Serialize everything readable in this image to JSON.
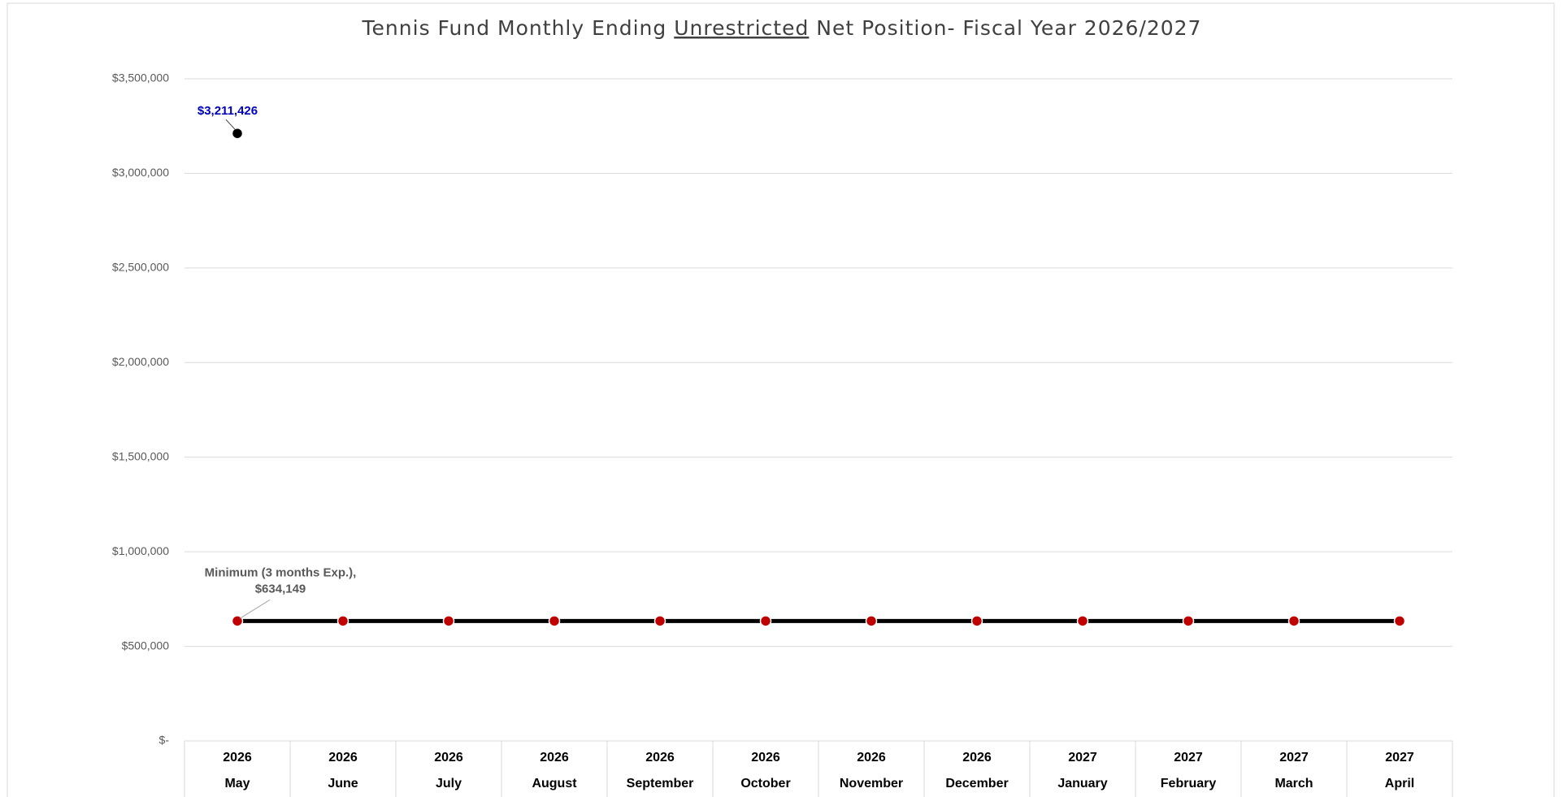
{
  "chart_data": {
    "type": "line",
    "title_parts": [
      "Tennis Fund Monthly Ending ",
      "Unrestricted",
      " Net Position- Fiscal Year 2026/2027"
    ],
    "categories": [
      "May",
      "June",
      "July",
      "August",
      "September",
      "October",
      "November",
      "December",
      "January",
      "February",
      "March",
      "April"
    ],
    "category_groups": [
      "2026",
      "2026",
      "2026",
      "2026",
      "2026",
      "2026",
      "2026",
      "2026",
      "2027",
      "2027",
      "2027",
      "2027"
    ],
    "series": [
      {
        "color": "#000000",
        "marker_color": "#000000",
        "line": false,
        "values": [
          3211426,
          null,
          null,
          null,
          null,
          null,
          null,
          null,
          null,
          null,
          null,
          null
        ],
        "value_labels": [
          "$3,211,426",
          null,
          null,
          null,
          null,
          null,
          null,
          null,
          null,
          null,
          null,
          null
        ],
        "label_color": "#0000c0"
      },
      {
        "color": "#000000",
        "marker_color": "#c00000",
        "line": true,
        "values": [
          634149,
          634149,
          634149,
          634149,
          634149,
          634149,
          634149,
          634149,
          634149,
          634149,
          634149,
          634149
        ],
        "value_labels": [
          [
            "Minimum (3 months Exp.),",
            "$634,149"
          ],
          null,
          null,
          null,
          null,
          null,
          null,
          null,
          null,
          null,
          null,
          null
        ],
        "label_color": "#595959"
      }
    ],
    "ylim": [
      0,
      3500000
    ],
    "yticks": [
      {
        "value": 0,
        "label": "$-"
      },
      {
        "value": 500000,
        "label": "$500,000"
      },
      {
        "value": 1000000,
        "label": "$1,000,000"
      },
      {
        "value": 1500000,
        "label": "$1,500,000"
      },
      {
        "value": 2000000,
        "label": "$2,000,000"
      },
      {
        "value": 2500000,
        "label": "$2,500,000"
      },
      {
        "value": 3000000,
        "label": "$3,000,000"
      },
      {
        "value": 3500000,
        "label": "$3,500,000"
      }
    ],
    "grid": true
  }
}
